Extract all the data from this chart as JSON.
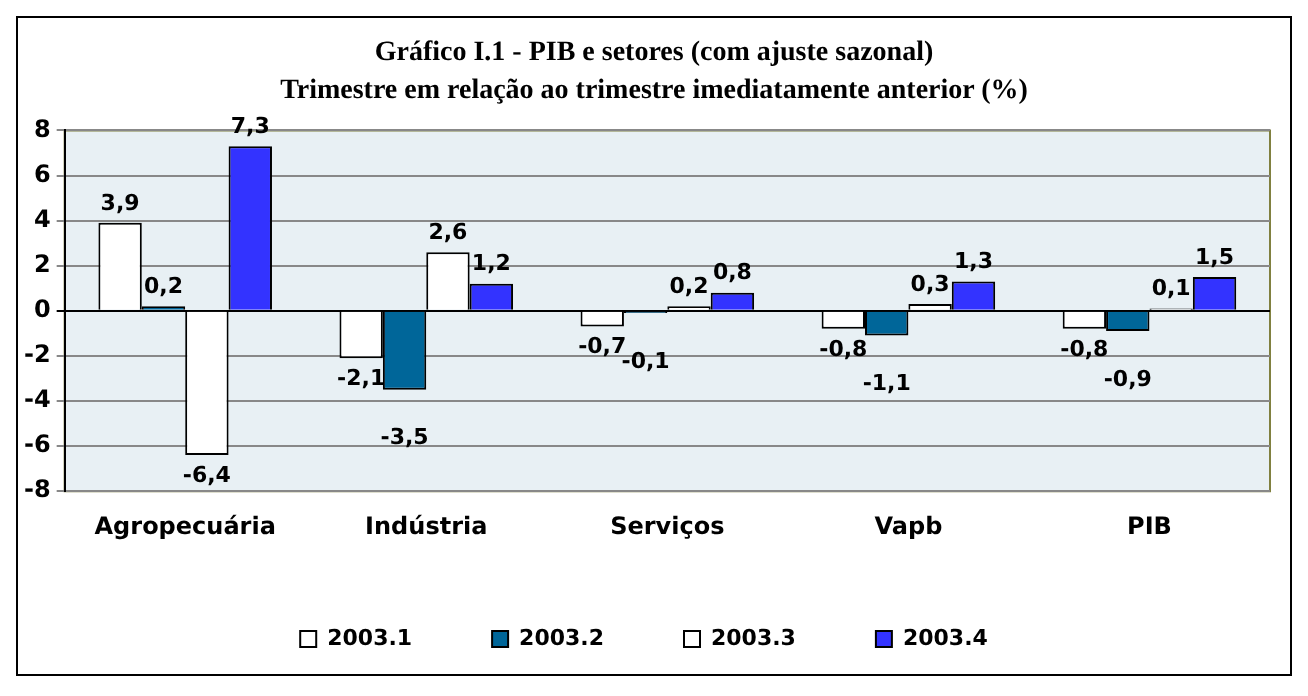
{
  "chart_data": {
    "type": "bar",
    "title": "Gráfico I.1 - PIB  e setores (com ajuste sazonal)",
    "subtitle": "Trimestre em relação ao trimestre imediatamente anterior (%)",
    "categories": [
      "Agropecuária",
      "Indústria",
      "Serviços",
      "Vapb",
      "PIB"
    ],
    "series": [
      {
        "name": "2003.1",
        "color": "#ffffff",
        "values": [
          3.9,
          -2.1,
          -0.7,
          -0.8,
          -0.8
        ],
        "value_labels": [
          "3,9",
          "-2,1",
          "-0,7",
          "-0,8",
          "-0,8"
        ]
      },
      {
        "name": "2003.2",
        "color": "#006699",
        "values": [
          0.2,
          -3.5,
          -0.1,
          -1.1,
          -0.9
        ],
        "value_labels": [
          "0,2",
          "-3,5",
          "-0,1",
          "-1,1",
          "-0,9"
        ]
      },
      {
        "name": "2003.3",
        "color": "#ffffff",
        "values": [
          -6.4,
          2.6,
          0.2,
          0.3,
          0.1
        ],
        "value_labels": [
          "-6,4",
          "2,6",
          "0,2",
          "0,3",
          "0,1"
        ]
      },
      {
        "name": "2003.4",
        "color": "#3333ff",
        "values": [
          7.3,
          1.2,
          0.8,
          1.3,
          1.5
        ],
        "value_labels": [
          "7,3",
          "1,2",
          "0,8",
          "1,3",
          "1,5"
        ]
      }
    ],
    "ylim": [
      -8,
      8
    ],
    "yticks": [
      -8,
      -6,
      -4,
      -2,
      0,
      2,
      4,
      6,
      8
    ],
    "grid": "y",
    "legend": "bottom"
  }
}
